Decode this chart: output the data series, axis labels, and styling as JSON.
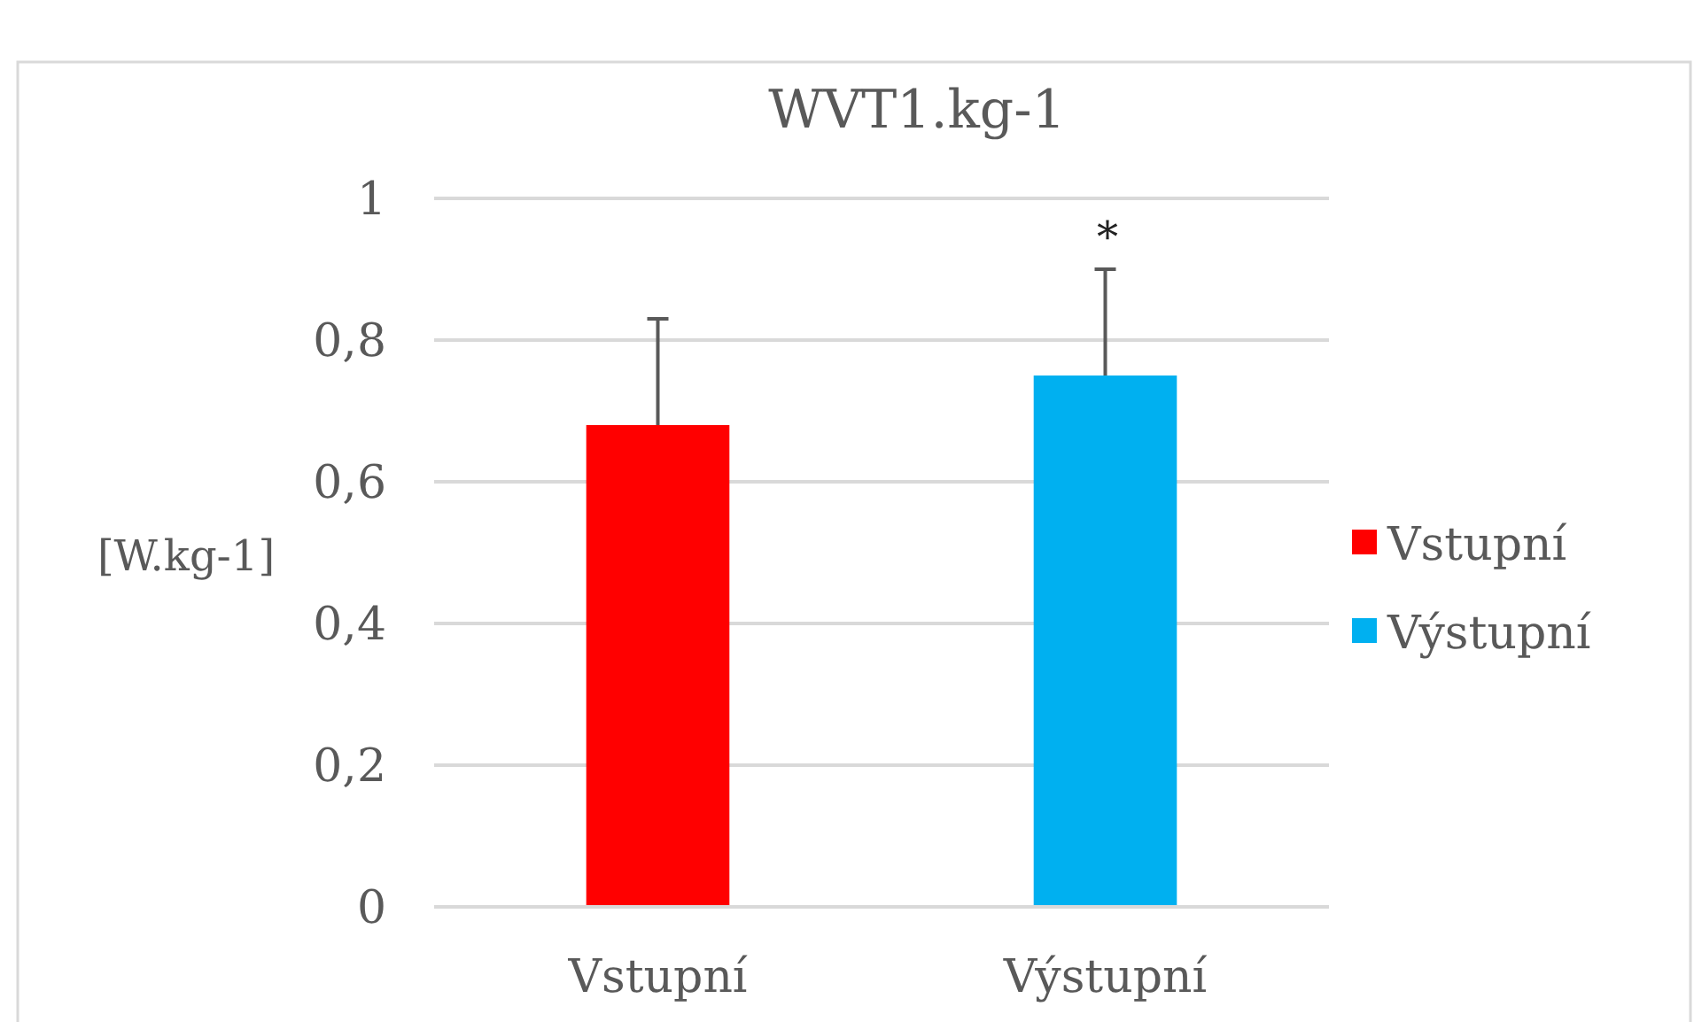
{
  "chart_data": {
    "type": "bar",
    "title": "WVT1.kg-1",
    "ylabel": "[W.kg-1]",
    "categories": [
      "Vstupní",
      "Výstupní"
    ],
    "series": [
      {
        "name": "Vstupní",
        "color": "#ff0000",
        "values": [
          0.68,
          null
        ],
        "errors": [
          [
            0.68,
            0.83
          ],
          null
        ]
      },
      {
        "name": "Výstupní",
        "color": "#00b0f0",
        "values": [
          null,
          0.75
        ],
        "errors": [
          null,
          [
            0.75,
            0.9
          ]
        ]
      }
    ],
    "ylim": [
      0,
      1
    ],
    "yticks": [
      {
        "value": 0,
        "label": "0"
      },
      {
        "value": 0.2,
        "label": "0,2"
      },
      {
        "value": 0.4,
        "label": "0,4"
      },
      {
        "value": 0.6,
        "label": "0,6"
      },
      {
        "value": 0.8,
        "label": "0,8"
      },
      {
        "value": 1,
        "label": "1"
      }
    ],
    "grid": "y",
    "legend": "right",
    "annotations": [
      "*"
    ]
  }
}
